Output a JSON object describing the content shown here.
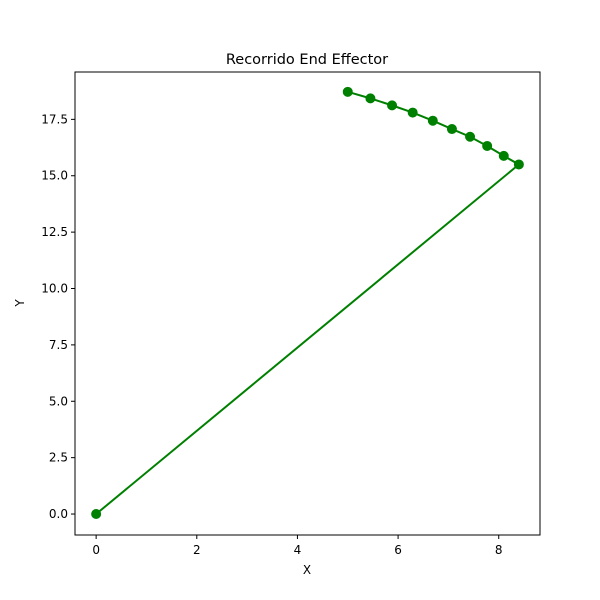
{
  "chart_data": {
    "type": "line",
    "title": "Recorrido End Effector",
    "xlabel": "X",
    "ylabel": "Y",
    "xlim": [
      -0.42,
      8.82
    ],
    "ylim": [
      -0.93,
      19.6
    ],
    "xticks": [
      0,
      2,
      4,
      6,
      8
    ],
    "xtick_labels": [
      "0",
      "2",
      "4",
      "6",
      "8"
    ],
    "yticks": [
      0.0,
      2.5,
      5.0,
      7.5,
      10.0,
      12.5,
      15.0,
      17.5
    ],
    "ytick_labels": [
      "0.0",
      "2.5",
      "5.0",
      "7.5",
      "10.0",
      "12.5",
      "15.0",
      "17.5"
    ],
    "grid": false,
    "color": "#008000",
    "series": [
      {
        "x": [
          0.0,
          8.4,
          8.1,
          7.77,
          7.43,
          7.07,
          6.69,
          6.29,
          5.88,
          5.45,
          5.0
        ],
        "y": [
          0.0,
          15.5,
          15.88,
          16.32,
          16.73,
          17.07,
          17.44,
          17.8,
          18.12,
          18.43,
          18.72
        ]
      }
    ]
  }
}
